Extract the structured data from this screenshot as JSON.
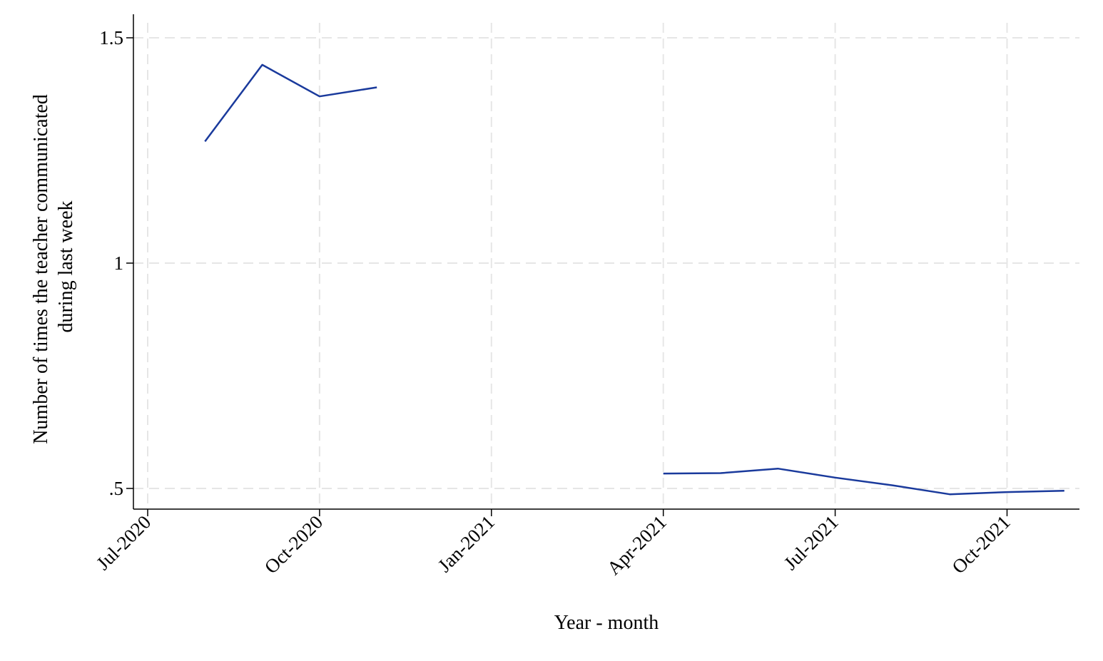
{
  "chart_data": {
    "type": "line",
    "xlabel": "Year - month",
    "ylabel_lines": [
      "Number of times the teacher communicated",
      "during last week"
    ],
    "xlim": [
      "2020-06",
      "2021-11"
    ],
    "ylim": [
      0.45,
      1.55
    ],
    "x_ticks": [
      {
        "value": "2020-07",
        "label": "Jul-2020"
      },
      {
        "value": "2020-10",
        "label": "Oct-2020"
      },
      {
        "value": "2021-01",
        "label": "Jan-2021"
      },
      {
        "value": "2021-04",
        "label": "Apr-2021"
      },
      {
        "value": "2021-07",
        "label": "Jul-2021"
      },
      {
        "value": "2021-10",
        "label": "Oct-2021"
      }
    ],
    "y_ticks": [
      {
        "value": 0.5,
        "label": ".5"
      },
      {
        "value": 1.0,
        "label": "1"
      },
      {
        "value": 1.5,
        "label": "1.5"
      }
    ],
    "grid": true,
    "line_color": "#1a3a9c",
    "grid_color": "#e6e6e6",
    "series": [
      {
        "segments": [
          [
            {
              "x": "2020-08",
              "y": 1.27
            },
            {
              "x": "2020-09",
              "y": 1.44
            },
            {
              "x": "2020-10",
              "y": 1.37
            },
            {
              "x": "2020-11",
              "y": 1.39
            }
          ],
          [
            {
              "x": "2021-04",
              "y": 0.533
            },
            {
              "x": "2021-05",
              "y": 0.534
            },
            {
              "x": "2021-06",
              "y": 0.544
            },
            {
              "x": "2021-07",
              "y": 0.524
            },
            {
              "x": "2021-08",
              "y": 0.507
            },
            {
              "x": "2021-09",
              "y": 0.487
            },
            {
              "x": "2021-10",
              "y": 0.492
            },
            {
              "x": "2021-11",
              "y": 0.495
            }
          ]
        ]
      }
    ]
  }
}
